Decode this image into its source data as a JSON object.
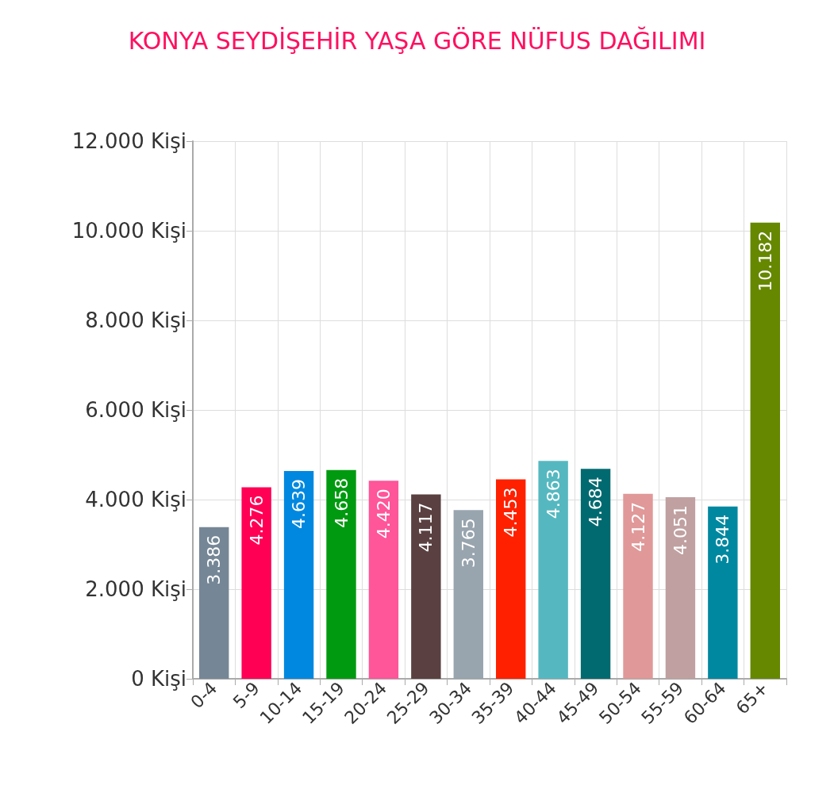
{
  "chart_data": {
    "type": "bar",
    "title": "KONYA SEYDİŞEHİR YAŞA GÖRE NÜFUS DAĞILIMI",
    "categories": [
      "0-4",
      "5-9",
      "10-14",
      "15-19",
      "20-24",
      "25-29",
      "30-34",
      "35-39",
      "40-44",
      "45-49",
      "50-54",
      "55-59",
      "60-64",
      "65+"
    ],
    "values": [
      3386,
      4276,
      4639,
      4658,
      4420,
      4117,
      3765,
      4453,
      4863,
      4684,
      4127,
      4051,
      3844,
      10182
    ],
    "value_labels": [
      "3.386",
      "4.276",
      "4.639",
      "4.658",
      "4.420",
      "4.117",
      "3.765",
      "4.453",
      "4.863",
      "4.684",
      "4.127",
      "4.051",
      "3.844",
      "10.182"
    ],
    "colors": [
      "#758796",
      "#ff0055",
      "#0088e0",
      "#009a10",
      "#ff5599",
      "#5a4040",
      "#98a4ae",
      "#ff2000",
      "#55b8c0",
      "#006a70",
      "#e09898",
      "#c0a0a0",
      "#0088a0",
      "#668800"
    ],
    "ylim": [
      0,
      12000
    ],
    "yticks": [
      {
        "value": 0,
        "label": "0 Kişi"
      },
      {
        "value": 2000,
        "label": "2.000 Kişi"
      },
      {
        "value": 4000,
        "label": "4.000 Kişi"
      },
      {
        "value": 6000,
        "label": "6.000 Kişi"
      },
      {
        "value": 8000,
        "label": "8.000 Kişi"
      },
      {
        "value": 10000,
        "label": "10.000 Kişi"
      },
      {
        "value": 12000,
        "label": "12.000 Kişi"
      }
    ],
    "grid": true
  }
}
